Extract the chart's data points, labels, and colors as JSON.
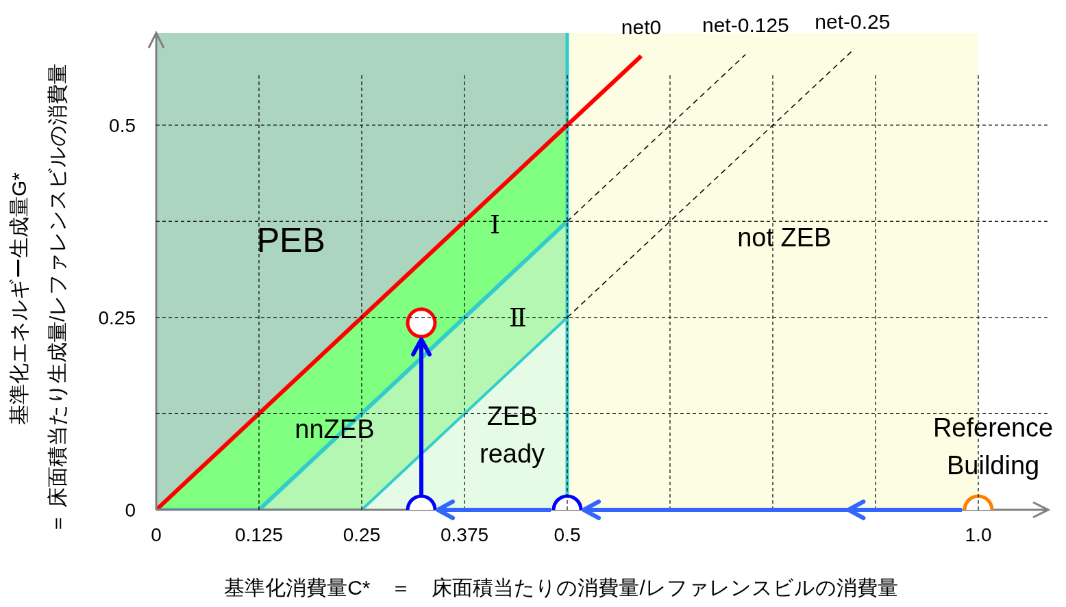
{
  "chart_data": {
    "type": "line",
    "xlabel": "基準化消費量C*　＝　床面積当たりの消費量/レファレンスビルの消費量",
    "ylabel": "基準化エネルギー生成量G*\n＝ 床面積当たり生成量/レファレンスビルの消費量",
    "xlim": [
      0,
      1.085
    ],
    "xticks": [
      0,
      0.125,
      0.25,
      0.375,
      0.5,
      {
        "value": 0.625,
        "label": null
      },
      {
        "value": 0.75,
        "label": null
      },
      {
        "value": 0.875,
        "label": null
      },
      {
        "value": 1.0,
        "label": "1.0"
      }
    ],
    "ylim": [
      0,
      0.62
    ],
    "yticks": [
      0,
      {
        "value": 0.125,
        "label": null
      },
      0.25,
      {
        "value": 0.375,
        "label": null
      },
      0.5
    ],
    "grid": true,
    "bands": [
      {
        "axis": "x",
        "from": 0,
        "to": 0.5,
        "color": "#acd5c0"
      },
      {
        "axis": "x",
        "from": 0.5,
        "to": 1.0,
        "color": "#fdfde3"
      }
    ],
    "ref_lines": [
      {
        "axis": "x",
        "value": 0.5,
        "color": "#33cccc"
      }
    ],
    "series": [
      {
        "type": "area",
        "color": "#80ff80",
        "x": [
          0,
          0.5
        ],
        "values": [
          0,
          0.5
        ]
      },
      {
        "type": "area",
        "color": "#b3f7b3",
        "x": [
          0.125,
          0.5
        ],
        "values": [
          0,
          0.375
        ]
      },
      {
        "type": "area",
        "color": "#e6fbe6",
        "x": [
          0.25,
          0.5
        ],
        "values": [
          0,
          0.25
        ]
      },
      {
        "color": "#33cccc",
        "x": [
          0,
          0.125,
          0.5
        ],
        "values": [
          0,
          0,
          0.375
        ]
      },
      {
        "color": "#33cccc",
        "x": [
          0.125,
          0.25,
          0.5
        ],
        "values": [
          0,
          0,
          0.25
        ]
      },
      {
        "name": "net-0.125",
        "color": "#000000",
        "line_style": "dashed",
        "x": [
          0.5,
          0.717
        ],
        "values": [
          0.375,
          0.592
        ]
      },
      {
        "name": "net-0.25",
        "color": "#000000",
        "line_style": "dashed",
        "x": [
          0.5,
          0.847
        ],
        "values": [
          0.25,
          0.597
        ]
      },
      {
        "name": "net0",
        "color": "#ff0000",
        "x": [
          0,
          0.59
        ],
        "values": [
          0,
          0.59
        ]
      },
      {
        "type": "scatter",
        "marker": "circle",
        "x": [
          0.3225,
          0.3225,
          0.5,
          1.0
        ],
        "values": [
          0.243,
          0,
          0,
          0
        ],
        "colors": [
          "#ff0000",
          "#0000ff",
          "#0000ff",
          "#ff7f00"
        ]
      }
    ],
    "annotations": [
      "PEB",
      "Ⅰ",
      "Ⅱ",
      "nnZEB",
      "ZEB\nready",
      "not ZEB",
      "Reference\nBuilding"
    ]
  }
}
